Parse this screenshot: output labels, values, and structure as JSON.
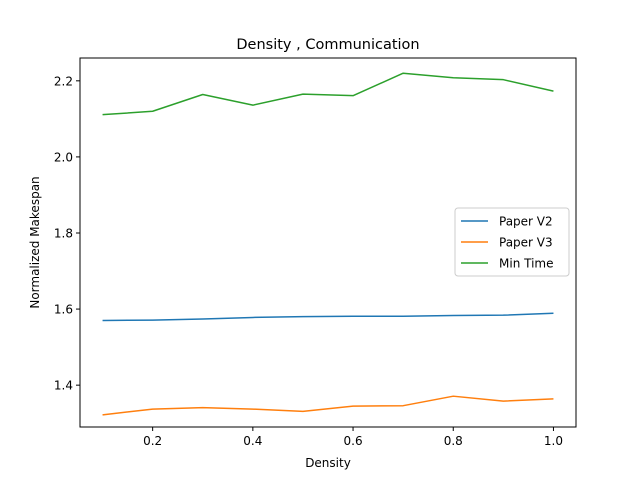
{
  "chart_data": {
    "type": "line",
    "title": "Density , Communication",
    "xlabel": "Density",
    "ylabel": "Normalized Makespan",
    "x": [
      0.1,
      0.2,
      0.3,
      0.4,
      0.5,
      0.6,
      0.7,
      0.8,
      0.9,
      1.0
    ],
    "xlim": [
      0.055,
      1.045
    ],
    "ylim": [
      1.29,
      2.26
    ],
    "xticks": [
      0.2,
      0.4,
      0.6,
      0.8,
      1.0
    ],
    "xtick_labels": [
      "0.2",
      "0.4",
      "0.6",
      "0.8",
      "1.0"
    ],
    "yticks": [
      1.4,
      1.6,
      1.8,
      2.0,
      2.2
    ],
    "ytick_labels": [
      "1.4",
      "1.6",
      "1.8",
      "2.0",
      "2.2"
    ],
    "grid": false,
    "legend_position": "center-right",
    "series": [
      {
        "name": "Paper V2",
        "color": "#1f77b4",
        "values": [
          1.57,
          1.571,
          1.574,
          1.578,
          1.58,
          1.581,
          1.581,
          1.583,
          1.584,
          1.589
        ]
      },
      {
        "name": "Paper V3",
        "color": "#ff7f0e",
        "values": [
          1.322,
          1.337,
          1.341,
          1.337,
          1.331,
          1.345,
          1.346,
          1.371,
          1.358,
          1.364
        ]
      },
      {
        "name": "Min Time",
        "color": "#2ca02c",
        "values": [
          2.111,
          2.12,
          2.164,
          2.136,
          2.165,
          2.161,
          2.22,
          2.208,
          2.203,
          2.173
        ]
      }
    ]
  }
}
